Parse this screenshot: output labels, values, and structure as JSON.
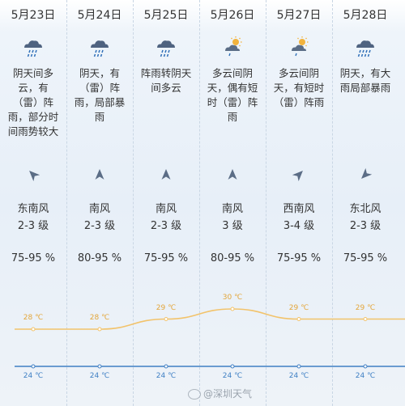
{
  "days": [
    {
      "date": "5月23日",
      "icon": "rain-cloud-icon",
      "desc": [
        "阴天间多",
        "云，有",
        "（雷）阵",
        "雨，部分时",
        "间雨势较大"
      ],
      "wind": "东南风",
      "level": "2-3 级",
      "humidity": "75-95 %",
      "high": "28 ℃",
      "low": "24 ℃",
      "dir_deg": 315
    },
    {
      "date": "5月24日",
      "icon": "rain-cloud-icon",
      "desc": [
        "阴天，有",
        "（雷）阵",
        "雨，局部暴",
        "雨"
      ],
      "wind": "南风",
      "level": "2-3 级",
      "humidity": "80-95 %",
      "high": "28 ℃",
      "low": "24 ℃",
      "dir_deg": 0
    },
    {
      "date": "5月25日",
      "icon": "rain-cloud-icon",
      "desc": [
        "阵雨转阴天",
        "间多云"
      ],
      "wind": "南风",
      "level": "2-3 级",
      "humidity": "75-95 %",
      "high": "29 ℃",
      "low": "24 ℃",
      "dir_deg": 0
    },
    {
      "date": "5月26日",
      "icon": "sun-cloud-icon",
      "desc": [
        "多云间阴",
        "天，偶有短",
        "时（雷）阵",
        "雨"
      ],
      "wind": "南风",
      "level": "3 级",
      "humidity": "80-95 %",
      "high": "30 ℃",
      "low": "24 ℃",
      "dir_deg": 0
    },
    {
      "date": "5月27日",
      "icon": "sun-cloud-icon",
      "desc": [
        "多云间阴",
        "天，有短时",
        "（雷）阵雨"
      ],
      "wind": "西南风",
      "level": "3-4 级",
      "humidity": "75-95 %",
      "high": "29 ℃",
      "low": "24 ℃",
      "dir_deg": 45
    },
    {
      "date": "5月28日",
      "icon": "heavy-rain-cloud-icon",
      "desc": [
        "阴天，有大",
        "雨局部暴雨"
      ],
      "wind": "东北风",
      "level": "2-3 级",
      "humidity": "75-95 %",
      "high": "29 ℃",
      "low": "24 ℃",
      "dir_deg": 225
    }
  ],
  "chart_data": {
    "type": "line",
    "categories": [
      "5月23日",
      "5月24日",
      "5月25日",
      "5月26日",
      "5月27日",
      "5月28日"
    ],
    "series": [
      {
        "values": [
          28,
          28,
          29,
          30,
          29,
          29
        ],
        "color": "#f2c36b"
      },
      {
        "values": [
          24,
          24,
          24,
          24,
          24,
          24
        ],
        "color": "#3f7fc4"
      }
    ]
  },
  "watermark": "@深圳天气"
}
